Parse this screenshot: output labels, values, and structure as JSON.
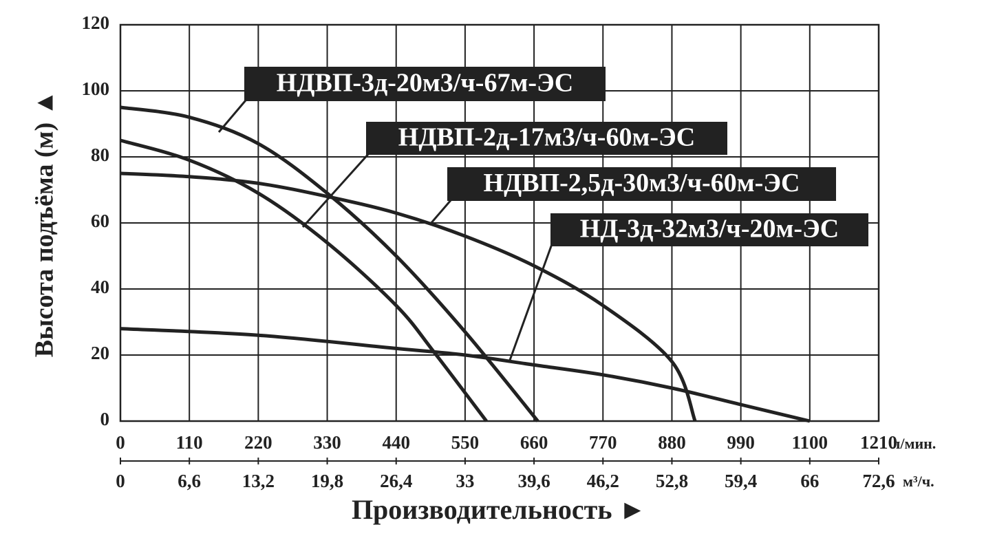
{
  "chart_data": {
    "type": "line",
    "y_label": "Высота подъёма (м) ▲",
    "x_label": "Производительность ►",
    "x_unit": "л/мин.",
    "x2_unit": "м³/ч.",
    "xlim": [
      0,
      1210
    ],
    "xticks": [
      0,
      110,
      220,
      330,
      440,
      550,
      660,
      770,
      880,
      990,
      1100,
      1210
    ],
    "x2lim": [
      0,
      72.6
    ],
    "x2ticks": [
      0,
      {
        "value": 6.6,
        "label": "6,6"
      },
      {
        "value": 13.2,
        "label": "13,2"
      },
      {
        "value": 19.8,
        "label": "19,8"
      },
      {
        "value": 26.4,
        "label": "26,4"
      },
      33,
      {
        "value": 39.6,
        "label": "39,6"
      },
      {
        "value": 46.2,
        "label": "46,2"
      },
      {
        "value": 52.8,
        "label": "52,8"
      },
      {
        "value": 59.4,
        "label": "59,4"
      },
      66,
      {
        "value": 72.6,
        "label": "72,6"
      }
    ],
    "ylim": [
      0,
      120
    ],
    "yticks": [
      0,
      20,
      40,
      60,
      80,
      100,
      120
    ],
    "grid": true,
    "series": [
      {
        "name": "НДВП-3д-20м3/ч-67м-ЭС",
        "color": "#222222",
        "x": [
          0,
          110,
          220,
          330,
          440,
          550,
          666
        ],
        "values": [
          95,
          92,
          84,
          69,
          50,
          27,
          0
        ]
      },
      {
        "name": "НДВП-2д-17м3/ч-60м-ЭС",
        "color": "#222222",
        "x": [
          0,
          110,
          220,
          330,
          440,
          500,
          584
        ],
        "values": [
          85,
          79,
          69,
          54,
          35,
          21,
          0
        ]
      },
      {
        "name": "НДВП-2,5д-30м3/ч-60м-ЭС",
        "color": "#222222",
        "x": [
          0,
          110,
          220,
          330,
          440,
          550,
          660,
          770,
          880,
          917
        ],
        "values": [
          75,
          74,
          72,
          68,
          63,
          56,
          47,
          35,
          18,
          0
        ]
      },
      {
        "name": "НД-3д-32м3/ч-20м-ЭС",
        "color": "#222222",
        "x": [
          0,
          220,
          440,
          550,
          660,
          770,
          880,
          990,
          1100
        ],
        "values": [
          28,
          26,
          22,
          20,
          17,
          14,
          10,
          5,
          0
        ]
      }
    ]
  }
}
